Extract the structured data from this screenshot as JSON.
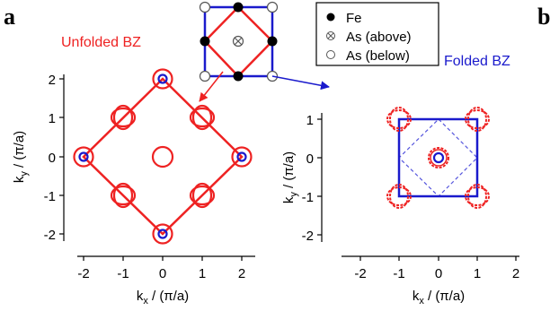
{
  "panels": {
    "left_letter": "a",
    "right_letter": "b",
    "left_title": "Unfolded BZ",
    "right_title": "Folded BZ"
  },
  "legend": {
    "items": [
      {
        "symbol": "filled-circle",
        "label": "Fe"
      },
      {
        "symbol": "crossed-circle",
        "label": "As (above)"
      },
      {
        "symbol": "open-circle",
        "label": "As (below)"
      }
    ]
  },
  "axes": {
    "left": {
      "xlabel": "k",
      "xlabel_sub": "x",
      "xlabel_unit": " / (π/a)",
      "ylabel": "k",
      "ylabel_sub": "y",
      "ylabel_unit": " / (π/a)",
      "xticks": [
        "-2",
        "-1",
        "0",
        "1",
        "2"
      ],
      "yticks": [
        "2",
        "1",
        "0",
        "-1",
        "-2"
      ]
    },
    "right": {
      "xlabel": "k",
      "xlabel_sub": "x",
      "xlabel_unit": " / (π/a)",
      "ylabel": "k",
      "ylabel_sub": "y",
      "ylabel_unit": " / (π/a)",
      "xticks": [
        "-2",
        "-1",
        "0",
        "1",
        "2"
      ],
      "yticks": [
        "1",
        "0",
        "-1",
        "-2"
      ]
    }
  },
  "colors": {
    "red": "#ee2222",
    "blue": "#1a1acc",
    "black": "#000000",
    "grey": "#555555"
  }
}
